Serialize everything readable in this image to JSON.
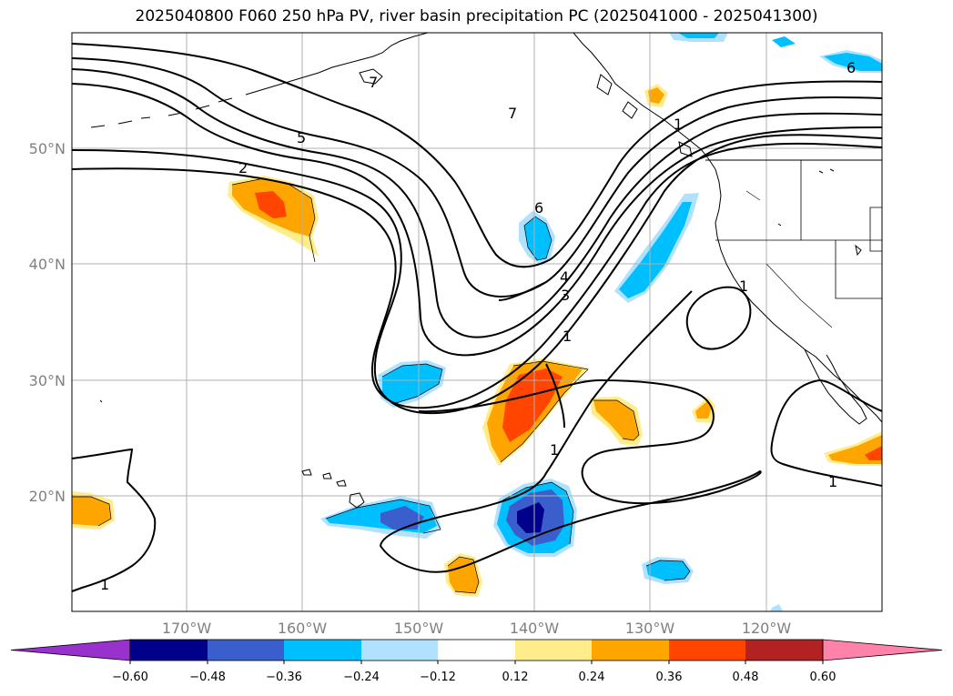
{
  "title": "2025040800 F060 250 hPa PV, river basin precipitation PC (2025041000 - 2025041300)",
  "latitude_labels": [
    "50°N",
    "40°N",
    "30°N",
    "20°N"
  ],
  "longitude_labels": [
    "170°W",
    "160°W",
    "150°W",
    "140°W",
    "130°W",
    "120°W"
  ],
  "colorbar": {
    "tick_labels": [
      "−0.60",
      "−0.48",
      "−0.36",
      "−0.24",
      "−0.12",
      "0.12",
      "0.24",
      "0.36",
      "0.48",
      "0.60"
    ],
    "colors": [
      "#9932cc",
      "#00008b",
      "#3a5fcd",
      "#00bfff",
      "#b0e2ff",
      "#ffffff",
      "#ffec8b",
      "#ffa500",
      "#ff4500",
      "#b22222",
      "#ff82ab"
    ]
  },
  "contour_labels": [
    "7",
    "7",
    "5",
    "2",
    "6",
    "6",
    "4",
    "3",
    "1",
    "1",
    "1",
    "1",
    "1",
    "1"
  ],
  "colors": {
    "contour": "#000000",
    "gridline": "#b0b0b0",
    "coastline": "#000000"
  }
}
